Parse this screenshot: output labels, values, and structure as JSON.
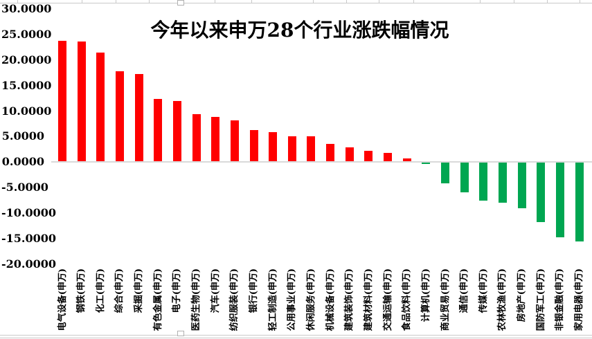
{
  "chart_data": {
    "type": "bar",
    "title": "今年以来申万28个行业涨跌幅情况",
    "categories": [
      "电气设备(申万)",
      "钢铁(申万)",
      "化工(申万)",
      "综合(申万)",
      "采掘(申万)",
      "有色金属(申万)",
      "电子(申万)",
      "医药生物(申万)",
      "汽车(申万)",
      "纺织服装(申万)",
      "银行(申万)",
      "轻工制造(申万)",
      "公用事业(申万)",
      "休闲服务(申万)",
      "机械设备(申万)",
      "建筑装饰(申万)",
      "建筑材料(申万)",
      "交通运输(申万)",
      "食品饮料(申万)",
      "计算机(申万)",
      "商业贸易(申万)",
      "通信(申万)",
      "传媒(申万)",
      "农林牧渔(申万)",
      "房地产(申万)",
      "国防军工(申万)",
      "非银金融(申万)",
      "家用电器(申万)"
    ],
    "values": [
      23.8,
      23.6,
      21.5,
      17.8,
      17.3,
      12.4,
      11.9,
      9.4,
      8.9,
      8.2,
      6.3,
      5.8,
      5.1,
      5.1,
      3.6,
      2.9,
      2.2,
      1.8,
      0.7,
      -0.3,
      -4.0,
      -5.8,
      -7.4,
      -7.8,
      -9.0,
      -11.7,
      -14.7,
      -15.5
    ],
    "xlabel": "",
    "ylabel": "",
    "ylim": [
      -20,
      30
    ],
    "ytick_interval": 5,
    "yticks": [
      "30.0000",
      "25.0000",
      "20.0000",
      "15.0000",
      "10.0000",
      "5.0000",
      "0.0000",
      "-5.0000",
      "-10.0000",
      "-15.0000",
      "-20.0000"
    ],
    "grid": false,
    "legend_position": "none",
    "bar_orientation": "vertical",
    "x_label_rotation_deg": 90
  },
  "colors": {
    "positive_bar": "#ff0000",
    "negative_bar": "#00a651",
    "axis_line": "#d9d9d9",
    "text": "#000000",
    "chrome_line": "#c9c9c9"
  }
}
